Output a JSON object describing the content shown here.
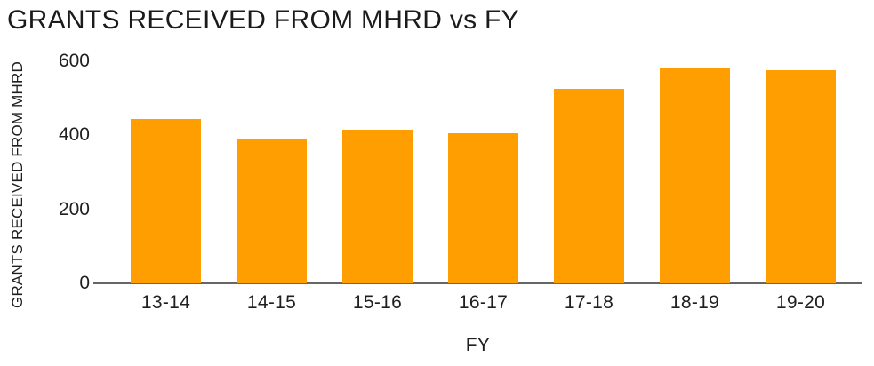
{
  "chart_data": {
    "type": "bar",
    "title": "GRANTS RECEIVED FROM MHRD vs FY",
    "xlabel": "FY",
    "ylabel": "GRANTS RECEIVED FROM MHRD",
    "categories": [
      "13-14",
      "14-15",
      "15-16",
      "16-17",
      "17-18",
      "18-19",
      "19-20"
    ],
    "values": [
      445,
      390,
      415,
      405,
      525,
      580,
      575
    ],
    "yticks": [
      0,
      200,
      400,
      600
    ],
    "ylim": [
      0,
      600
    ],
    "grid": false,
    "legend_position": "none",
    "bar_color": "#FF9E01",
    "axis_line_color": "#666666",
    "text_color": "#1f1f1f",
    "background_color": "#ffffff"
  }
}
